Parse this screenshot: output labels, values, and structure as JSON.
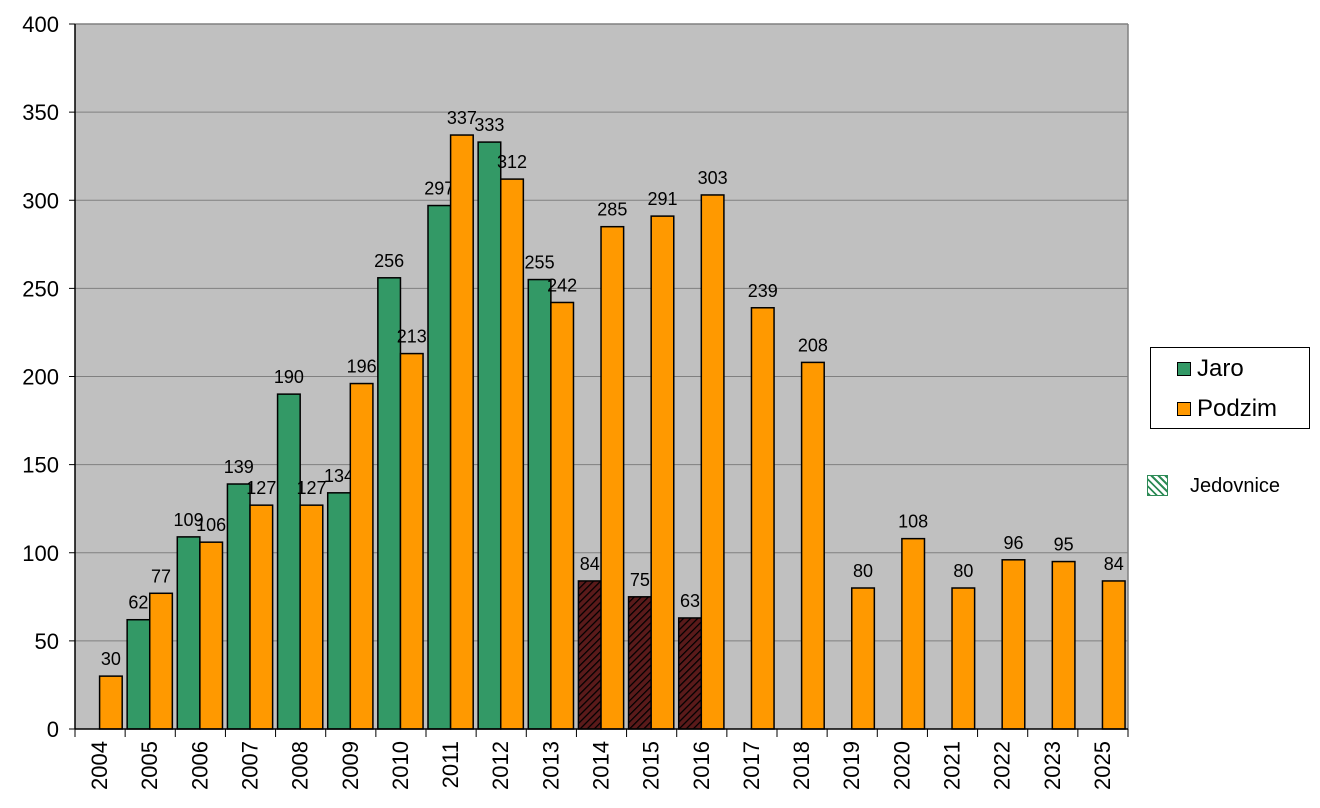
{
  "chart_data": {
    "type": "bar",
    "categories": [
      "2004",
      "2005",
      "2006",
      "2007",
      "2008",
      "2009",
      "2010",
      "2011",
      "2012",
      "2013",
      "2014",
      "2015",
      "2016",
      "2017",
      "2018",
      "2019",
      "2020",
      "2021",
      "2022",
      "2023",
      "2025"
    ],
    "series": [
      {
        "name": "Jaro",
        "color": "#339966",
        "values": [
          null,
          62,
          109,
          139,
          190,
          134,
          256,
          297,
          333,
          255,
          84,
          75,
          63,
          null,
          null,
          null,
          null,
          null,
          null,
          null,
          null
        ],
        "special": [
          false,
          false,
          false,
          false,
          false,
          false,
          false,
          false,
          false,
          false,
          true,
          true,
          true,
          false,
          false,
          false,
          false,
          false,
          false,
          false,
          false
        ]
      },
      {
        "name": "Podzim",
        "color": "#ff9900",
        "values": [
          30,
          77,
          106,
          127,
          127,
          196,
          213,
          337,
          312,
          242,
          285,
          291,
          303,
          239,
          208,
          80,
          108,
          80,
          96,
          95,
          84
        ]
      }
    ],
    "special_series": {
      "name": "Jedovnice",
      "color": "#2e8b57",
      "bar_fill": "#5a1a1a"
    },
    "ylim": [
      0,
      400
    ],
    "yticks": [
      0,
      50,
      100,
      150,
      200,
      250,
      300,
      350,
      400
    ],
    "plot_bg": "#c0c0c0",
    "title": "",
    "xlabel": "",
    "ylabel": "",
    "legend_position": "right",
    "grid": true
  }
}
